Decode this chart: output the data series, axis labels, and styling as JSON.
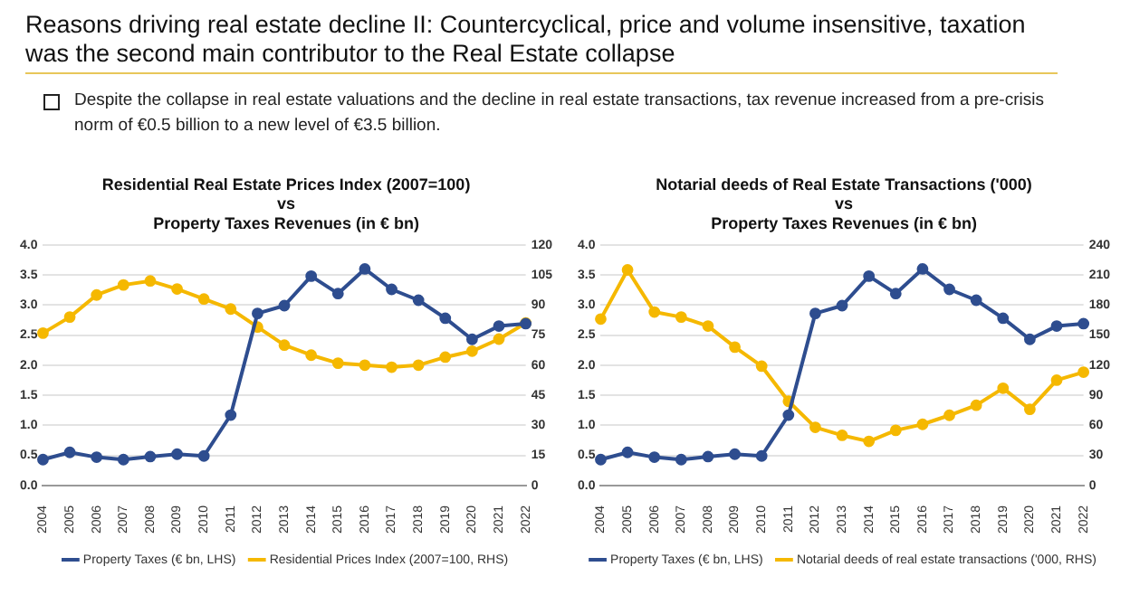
{
  "chart_data": [
    {
      "type": "line",
      "title": "Residential Real Estate Prices Index (2007=100)\nvs\nProperty Taxes Revenues (in € bn)",
      "annotations": [
        "Reasons driving real estate decline II: Countercyclical, price and volume insensitive, taxation was the second main contributor to the Real Estate collapse",
        "Despite the collapse in real estate valuations and the decline in real estate transactions, tax revenue increased from a pre-crisis norm of €0.5 billion to a new level of €3.5 billion."
      ],
      "categories": [
        "2004",
        "2005",
        "2006",
        "2007",
        "2008",
        "2009",
        "2010",
        "2011",
        "2012",
        "2013",
        "2014",
        "2015",
        "2016",
        "2017",
        "2018",
        "2019",
        "2020",
        "2021",
        "2022"
      ],
      "series": [
        {
          "name": "Property Taxes (€ bn, LHS)",
          "color": "#2e4d8f",
          "values": [
            0.43,
            0.55,
            0.47,
            0.43,
            0.48,
            0.52,
            0.49,
            1.17,
            2.86,
            2.99,
            3.48,
            3.19,
            3.6,
            3.26,
            3.08,
            2.78,
            2.43,
            2.65,
            2.69
          ]
        },
        {
          "name": "Residential Prices Index (2007=100, RHS)",
          "color": "#f5b800",
          "axis": "y2",
          "values": [
            76,
            84,
            95,
            100,
            102,
            98,
            93,
            88,
            79,
            70,
            65,
            61,
            60,
            59,
            60,
            64,
            67,
            73,
            81
          ]
        }
      ],
      "ylim": [
        0,
        4
      ],
      "yticks": [
        {
          "value": 0,
          "label": "0.0"
        },
        {
          "value": 0.5,
          "label": "0.5"
        },
        {
          "value": 1,
          "label": "1.0"
        },
        {
          "value": 1.5,
          "label": "1.5"
        },
        {
          "value": 2,
          "label": "2.0"
        },
        {
          "value": 2.5,
          "label": "2.5"
        },
        {
          "value": 3,
          "label": "3.0"
        },
        {
          "value": 3.5,
          "label": "3.5"
        },
        {
          "value": 4,
          "label": "4.0"
        }
      ],
      "y2lim": [
        0,
        120
      ],
      "y2ticks": [
        0,
        15,
        30,
        45,
        60,
        75,
        90,
        105,
        120
      ],
      "grid": "y",
      "legend": "bottom",
      "marker": "circle"
    },
    {
      "type": "line",
      "title": "Notarial deeds of Real Estate Transactions ('000)\nvs\nProperty Taxes Revenues (in € bn)",
      "categories": [
        "2004",
        "2005",
        "2006",
        "2007",
        "2008",
        "2009",
        "2010",
        "2011",
        "2012",
        "2013",
        "2014",
        "2015",
        "2016",
        "2017",
        "2018",
        "2019",
        "2020",
        "2021",
        "2022"
      ],
      "series": [
        {
          "name": "Property Taxes (€ bn, LHS)",
          "color": "#2e4d8f",
          "values": [
            0.43,
            0.55,
            0.47,
            0.43,
            0.48,
            0.52,
            0.49,
            1.17,
            2.86,
            2.99,
            3.48,
            3.19,
            3.6,
            3.26,
            3.08,
            2.78,
            2.43,
            2.65,
            2.69
          ]
        },
        {
          "name": "Notarial deeds of real estate transactions ('000, RHS)",
          "color": "#f5b800",
          "axis": "y2",
          "values": [
            166,
            215,
            173,
            168,
            159,
            138,
            119,
            84,
            58,
            50,
            44,
            55,
            61,
            70,
            80,
            97,
            76,
            105,
            113
          ]
        }
      ],
      "ylim": [
        0,
        4
      ],
      "yticks": [
        {
          "value": 0,
          "label": "0.0"
        },
        {
          "value": 0.5,
          "label": "0.5"
        },
        {
          "value": 1,
          "label": "1.0"
        },
        {
          "value": 1.5,
          "label": "1.5"
        },
        {
          "value": 2,
          "label": "2.0"
        },
        {
          "value": 2.5,
          "label": "2.5"
        },
        {
          "value": 3,
          "label": "3.0"
        },
        {
          "value": 3.5,
          "label": "3.5"
        },
        {
          "value": 4,
          "label": "4.0"
        }
      ],
      "y2lim": [
        0,
        240
      ],
      "y2ticks": [
        0,
        30,
        60,
        90,
        120,
        150,
        180,
        210,
        240
      ],
      "grid": "y",
      "legend": "bottom",
      "marker": "circle"
    }
  ]
}
